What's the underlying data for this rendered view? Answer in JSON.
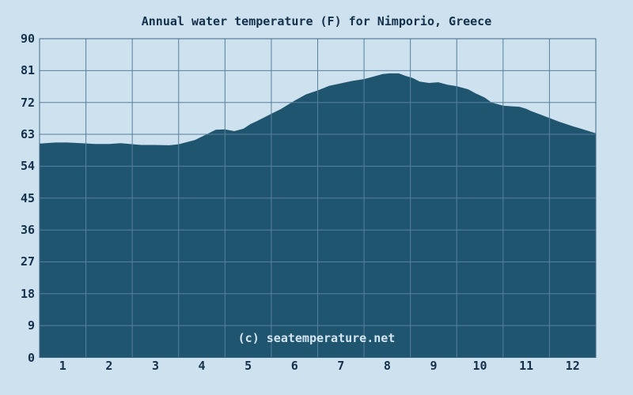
{
  "chart_data": {
    "type": "area",
    "title": "Annual water temperature (F) for Nimporio, Greece",
    "watermark": "(c) seatemperature.net",
    "xlabel": "",
    "ylabel": "",
    "unit": "F",
    "grid": true,
    "legend": "none",
    "ylim": [
      0,
      90
    ],
    "xlim_months": [
      0,
      12
    ],
    "y_ticks": [
      0,
      9,
      18,
      27,
      36,
      45,
      54,
      63,
      72,
      81,
      90
    ],
    "x_tick_labels": [
      "1",
      "2",
      "3",
      "4",
      "5",
      "6",
      "7",
      "8",
      "9",
      "10",
      "11",
      "12"
    ],
    "categories": [
      "1",
      "2",
      "3",
      "4",
      "5",
      "6",
      "7",
      "8",
      "9",
      "10",
      "11",
      "12"
    ],
    "monthly_mean_f": [
      60.7,
      60.3,
      60.0,
      62.1,
      66.4,
      72.5,
      77.4,
      80.2,
      77.5,
      74.0,
      70.2,
      65.3
    ],
    "curve_samples": [
      [
        0.0,
        60.4
      ],
      [
        0.35,
        60.7
      ],
      [
        0.6,
        60.7
      ],
      [
        0.9,
        60.5
      ],
      [
        1.2,
        60.3
      ],
      [
        1.5,
        60.3
      ],
      [
        1.75,
        60.5
      ],
      [
        1.95,
        60.3
      ],
      [
        2.2,
        60.0
      ],
      [
        2.5,
        60.0
      ],
      [
        2.8,
        59.9
      ],
      [
        3.0,
        60.2
      ],
      [
        3.35,
        61.4
      ],
      [
        3.6,
        63.0
      ],
      [
        3.8,
        64.3
      ],
      [
        4.0,
        64.4
      ],
      [
        4.2,
        63.9
      ],
      [
        4.4,
        64.6
      ],
      [
        4.55,
        65.9
      ],
      [
        4.7,
        66.8
      ],
      [
        5.0,
        68.8
      ],
      [
        5.2,
        70.1
      ],
      [
        5.5,
        72.5
      ],
      [
        5.75,
        74.3
      ],
      [
        6.0,
        75.4
      ],
      [
        6.25,
        76.7
      ],
      [
        6.5,
        77.4
      ],
      [
        6.75,
        78.1
      ],
      [
        7.0,
        78.6
      ],
      [
        7.2,
        79.3
      ],
      [
        7.4,
        80.0
      ],
      [
        7.55,
        80.2
      ],
      [
        7.75,
        80.2
      ],
      [
        7.9,
        79.5
      ],
      [
        8.05,
        78.9
      ],
      [
        8.2,
        77.9
      ],
      [
        8.4,
        77.5
      ],
      [
        8.6,
        77.7
      ],
      [
        8.8,
        77.0
      ],
      [
        9.0,
        76.6
      ],
      [
        9.25,
        75.7
      ],
      [
        9.4,
        74.6
      ],
      [
        9.6,
        73.4
      ],
      [
        9.75,
        72.0
      ],
      [
        10.0,
        71.1
      ],
      [
        10.2,
        70.9
      ],
      [
        10.35,
        70.8
      ],
      [
        10.5,
        70.2
      ],
      [
        10.6,
        69.6
      ],
      [
        10.8,
        68.6
      ],
      [
        11.0,
        67.6
      ],
      [
        11.2,
        66.6
      ],
      [
        11.5,
        65.3
      ],
      [
        11.7,
        64.5
      ],
      [
        12.0,
        63.3
      ]
    ]
  },
  "colors": {
    "background": "#cde1ee",
    "area_fill": "#205570",
    "gridline": "#57809e",
    "border": "#3f6886",
    "text": "#14304b",
    "watermark_text": "#d3e5f1"
  }
}
